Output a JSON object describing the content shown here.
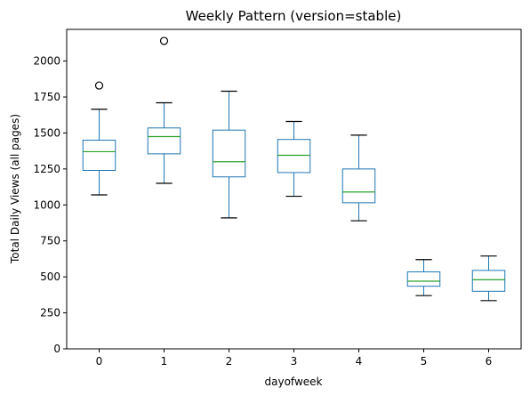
{
  "chart_data": {
    "type": "box",
    "title": "Weekly Pattern (version=stable)",
    "xlabel": "dayofweek",
    "ylabel": "Total Daily Views (all pages)",
    "ylim": [
      0,
      2220
    ],
    "yticks": [
      0,
      250,
      500,
      750,
      1000,
      1250,
      1500,
      1750,
      2000
    ],
    "grid": false,
    "legend": "none",
    "colors": {
      "box": "#1f77b4",
      "median": "#2ca02c",
      "whisker": "#000000",
      "outlier": "#000000"
    },
    "categories": [
      "0",
      "1",
      "2",
      "3",
      "4",
      "5",
      "6"
    ],
    "boxes": [
      {
        "category": "0",
        "whisker_low": 1070,
        "q1": 1240,
        "median": 1370,
        "q3": 1450,
        "whisker_high": 1665,
        "outliers": [
          1830
        ]
      },
      {
        "category": "1",
        "whisker_low": 1150,
        "q1": 1355,
        "median": 1475,
        "q3": 1535,
        "whisker_high": 1710,
        "outliers": [
          2140
        ]
      },
      {
        "category": "2",
        "whisker_low": 910,
        "q1": 1195,
        "median": 1300,
        "q3": 1520,
        "whisker_high": 1790,
        "outliers": []
      },
      {
        "category": "3",
        "whisker_low": 1060,
        "q1": 1225,
        "median": 1345,
        "q3": 1455,
        "whisker_high": 1580,
        "outliers": []
      },
      {
        "category": "4",
        "whisker_low": 890,
        "q1": 1015,
        "median": 1090,
        "q3": 1250,
        "whisker_high": 1485,
        "outliers": []
      },
      {
        "category": "5",
        "whisker_low": 370,
        "q1": 435,
        "median": 470,
        "q3": 535,
        "whisker_high": 620,
        "outliers": []
      },
      {
        "category": "6",
        "whisker_low": 335,
        "q1": 400,
        "median": 480,
        "q3": 545,
        "whisker_high": 645,
        "outliers": []
      }
    ]
  }
}
